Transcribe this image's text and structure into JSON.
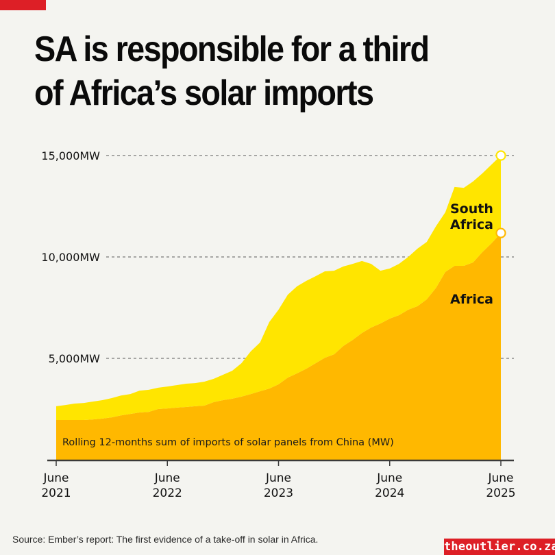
{
  "header": {
    "title": "SA is responsible for a third\nof Africa’s solar imports"
  },
  "footer": {
    "source": "Source: Ember’s report: The first evidence of a take-off in solar in Africa.",
    "brand": "theoutlier.co.za"
  },
  "colors": {
    "background": "#F4F4F0",
    "south_africa": "#FFE500",
    "rest_of_africa": "#FFB800",
    "accent_red": "#DD1F26"
  },
  "chart_data": {
    "type": "area",
    "stacked": true,
    "title": "SA is responsible for a third of Africa’s solar imports",
    "note": "Rolling 12-months sum of imports of solar panels from China (MW)",
    "xlabel": "",
    "ylabel": "",
    "ylim": [
      0,
      15000
    ],
    "yticks": [
      {
        "value": 5000,
        "label": "5,000MW"
      },
      {
        "value": 10000,
        "label": "10,000MW"
      },
      {
        "value": 15000,
        "label": "15,000MW"
      }
    ],
    "grid": "horizontal-dashed",
    "x_start": "June 2021",
    "x_end": "June 2025",
    "x_step": "month",
    "xticks": [
      {
        "index": 0,
        "line1": "June",
        "line2": "2021"
      },
      {
        "index": 12,
        "line1": "June",
        "line2": "2022"
      },
      {
        "index": 24,
        "line1": "June",
        "line2": "2023"
      },
      {
        "index": 36,
        "line1": "June",
        "line2": "2024"
      },
      {
        "index": 48,
        "line1": "June",
        "line2": "2025"
      }
    ],
    "series": [
      {
        "name": "Africa",
        "label": "Africa",
        "color": "#FFB800",
        "values": [
          1960,
          1960,
          1960,
          1960,
          1990,
          2030,
          2090,
          2190,
          2260,
          2330,
          2360,
          2500,
          2530,
          2570,
          2600,
          2640,
          2670,
          2840,
          2940,
          3010,
          3110,
          3240,
          3380,
          3510,
          3720,
          4050,
          4260,
          4490,
          4760,
          5030,
          5200,
          5610,
          5910,
          6250,
          6520,
          6720,
          6960,
          7130,
          7400,
          7570,
          7910,
          8480,
          9260,
          9560,
          9560,
          9730,
          10240,
          10680,
          11180
        ]
      },
      {
        "name": "South Africa",
        "label": "South\nAfrica",
        "color": "#FFE500",
        "values": [
          680,
          740,
          810,
          840,
          880,
          910,
          950,
          980,
          980,
          1080,
          1090,
          1050,
          1080,
          1110,
          1150,
          1140,
          1180,
          1150,
          1250,
          1380,
          1650,
          2100,
          2400,
          3280,
          3680,
          4090,
          4290,
          4330,
          4290,
          4260,
          4120,
          3920,
          3750,
          3550,
          3140,
          2600,
          2470,
          2530,
          2600,
          2840,
          2830,
          3040,
          2940,
          3890,
          3850,
          3990,
          3880,
          3880,
          3820
        ]
      }
    ],
    "totals": [
      2640,
      2700,
      2770,
      2800,
      2870,
      2940,
      3040,
      3170,
      3240,
      3410,
      3450,
      3550,
      3610,
      3680,
      3750,
      3780,
      3850,
      3990,
      4190,
      4390,
      4760,
      5340,
      5780,
      6790,
      7400,
      8140,
      8550,
      8820,
      9050,
      9290,
      9320,
      9530,
      9660,
      9800,
      9660,
      9320,
      9430,
      9660,
      10000,
      10410,
      10740,
      11520,
      12200,
      13450,
      13410,
      13720,
      14120,
      14560,
      15000
    ],
    "end_markers": [
      "Africa",
      "South Africa"
    ],
    "legend": "inline-labels-right"
  }
}
